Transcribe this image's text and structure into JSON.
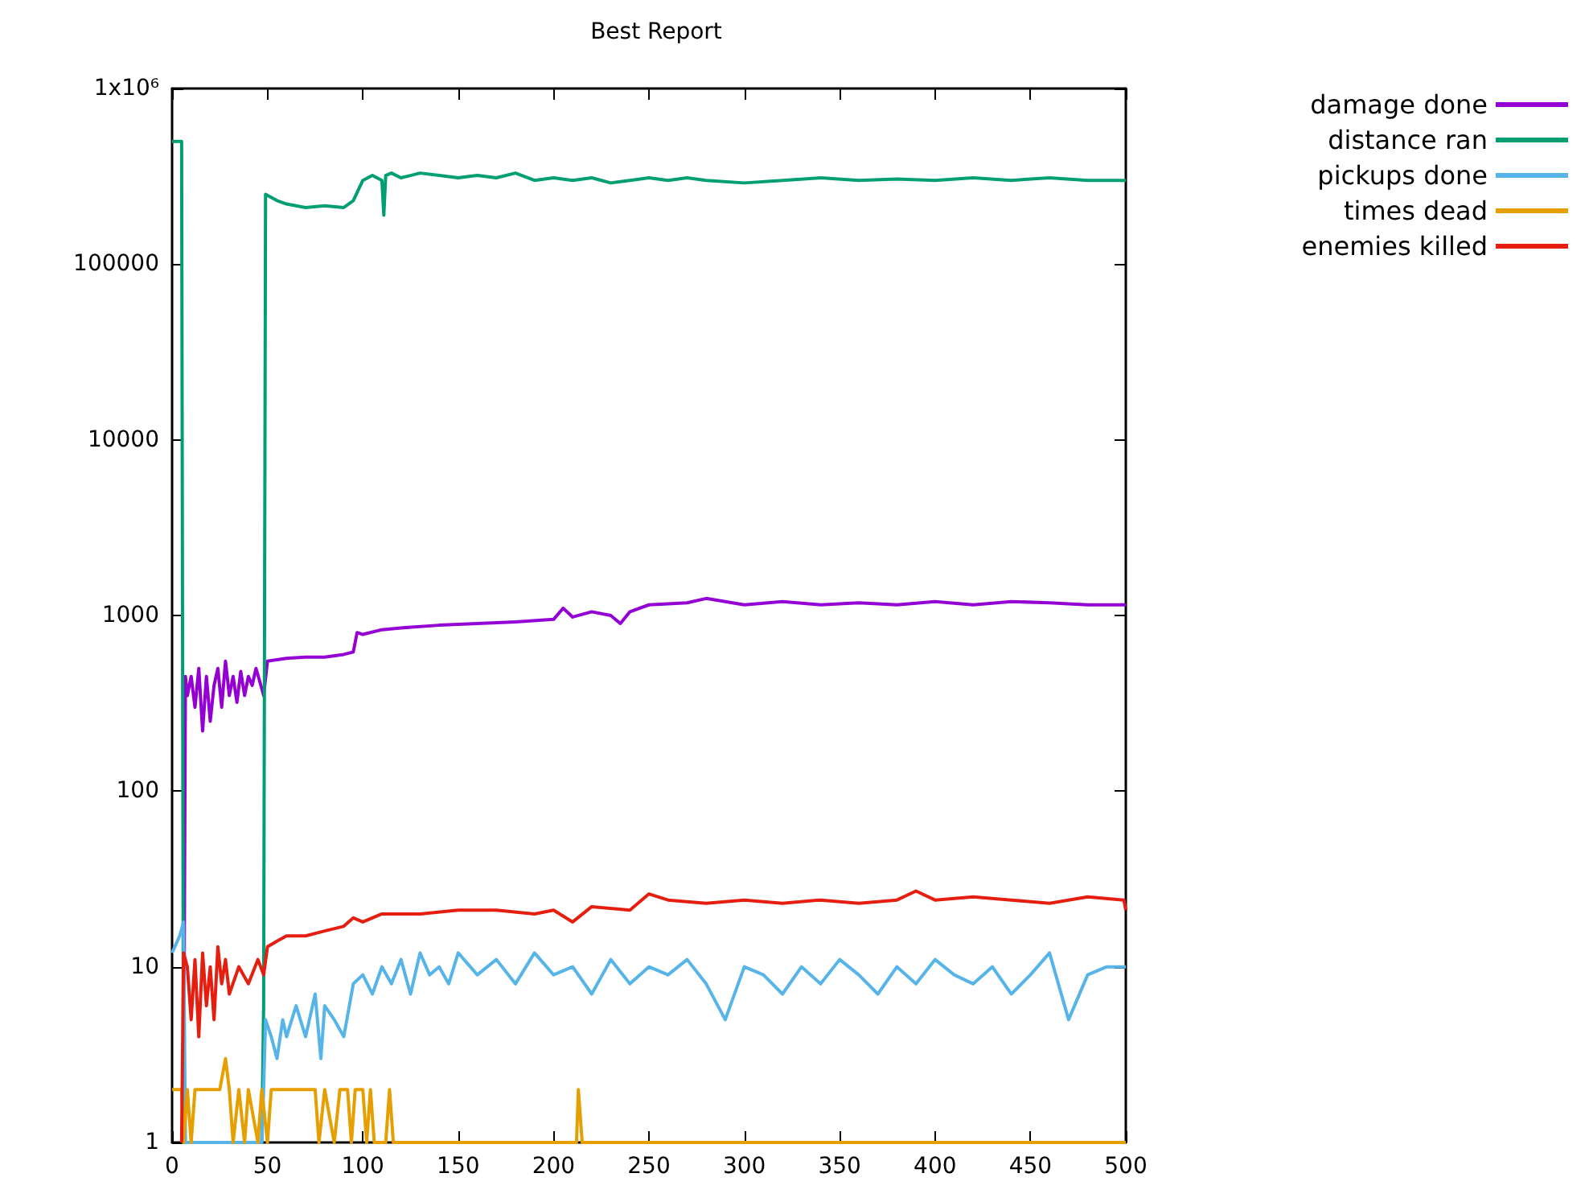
{
  "chart_data": {
    "type": "line",
    "title": "Best Report",
    "log": "y",
    "grid": false,
    "legend": "top right",
    "marker": "none",
    "line_style": "solid",
    "xlim": [
      0,
      500
    ],
    "xticks": [
      0,
      50,
      100,
      150,
      200,
      250,
      300,
      350,
      400,
      450,
      500
    ],
    "ylim": [
      1,
      1000000
    ],
    "yticks": [
      1,
      10,
      100,
      1000,
      10000,
      100000,
      {
        "value": 1000000,
        "label": "1x10⁶"
      }
    ],
    "series": [
      {
        "name": "damage done",
        "color": "#9400d3",
        "x": [
          6,
          7,
          8,
          10,
          12,
          14,
          16,
          18,
          20,
          22,
          24,
          26,
          28,
          30,
          32,
          34,
          36,
          38,
          40,
          42,
          44,
          46,
          48,
          50,
          60,
          70,
          80,
          90,
          95,
          97,
          100,
          110,
          120,
          140,
          160,
          180,
          200,
          205,
          210,
          220,
          230,
          235,
          240,
          250,
          270,
          280,
          300,
          320,
          340,
          360,
          380,
          400,
          420,
          440,
          460,
          480,
          500
        ],
        "values": [
          1,
          450,
          350,
          450,
          300,
          500,
          220,
          450,
          250,
          400,
          500,
          300,
          550,
          350,
          450,
          320,
          480,
          350,
          450,
          400,
          500,
          420,
          350,
          550,
          570,
          580,
          580,
          600,
          620,
          800,
          780,
          830,
          850,
          880,
          900,
          920,
          950,
          1100,
          980,
          1050,
          1000,
          900,
          1050,
          1150,
          1180,
          1250,
          1150,
          1200,
          1150,
          1180,
          1150,
          1200,
          1150,
          1200,
          1180,
          1150,
          1150
        ]
      },
      {
        "name": "distance ran",
        "color": "#009e73",
        "x": [
          0,
          5,
          6,
          47,
          48,
          49,
          55,
          60,
          70,
          80,
          90,
          95,
          100,
          105,
          110,
          111,
          112,
          115,
          120,
          130,
          140,
          150,
          160,
          170,
          180,
          190,
          200,
          210,
          220,
          230,
          240,
          250,
          260,
          270,
          280,
          300,
          320,
          340,
          360,
          380,
          400,
          420,
          440,
          460,
          480,
          500
        ],
        "values": [
          500000,
          500000,
          1,
          1,
          6,
          250000,
          230000,
          220000,
          210000,
          215000,
          210000,
          230000,
          300000,
          320000,
          300000,
          190000,
          320000,
          330000,
          310000,
          330000,
          320000,
          310000,
          320000,
          310000,
          330000,
          300000,
          310000,
          300000,
          310000,
          290000,
          300000,
          310000,
          300000,
          310000,
          300000,
          290000,
          300000,
          310000,
          300000,
          305000,
          300000,
          310000,
          300000,
          310000,
          300000,
          300000
        ]
      },
      {
        "name": "pickups done",
        "color": "#56b4e9",
        "x": [
          0,
          4,
          6,
          7,
          47,
          48,
          49,
          52,
          55,
          58,
          60,
          65,
          70,
          75,
          78,
          80,
          85,
          90,
          95,
          100,
          105,
          110,
          115,
          120,
          125,
          130,
          135,
          140,
          145,
          150,
          160,
          170,
          180,
          190,
          200,
          210,
          220,
          230,
          240,
          250,
          260,
          270,
          280,
          290,
          300,
          310,
          320,
          330,
          340,
          350,
          360,
          370,
          380,
          390,
          400,
          410,
          420,
          430,
          440,
          450,
          460,
          470,
          480,
          490,
          500
        ],
        "values": [
          12,
          15,
          18,
          1,
          1,
          2,
          5,
          4,
          3,
          5,
          4,
          6,
          4,
          7,
          3,
          6,
          5,
          4,
          8,
          9,
          7,
          10,
          8,
          11,
          7,
          12,
          9,
          10,
          8,
          12,
          9,
          11,
          8,
          12,
          9,
          10,
          7,
          11,
          8,
          10,
          9,
          11,
          8,
          5,
          10,
          9,
          7,
          10,
          8,
          11,
          9,
          7,
          10,
          8,
          11,
          9,
          8,
          10,
          7,
          9,
          12,
          5,
          9,
          10,
          10
        ]
      },
      {
        "name": "times dead",
        "color": "#e69f00",
        "x": [
          0,
          5,
          6,
          8,
          10,
          12,
          25,
          28,
          30,
          32,
          35,
          38,
          40,
          45,
          47,
          50,
          52,
          75,
          77,
          80,
          85,
          88,
          92,
          94,
          96,
          100,
          102,
          104,
          106,
          112,
          114,
          116,
          212,
          213,
          215,
          500
        ],
        "values": [
          2,
          2,
          1,
          2,
          1,
          2,
          2,
          3,
          2,
          1,
          2,
          1,
          2,
          1,
          2,
          1,
          2,
          2,
          1,
          2,
          1,
          2,
          2,
          1,
          2,
          2,
          1,
          2,
          1,
          1,
          2,
          1,
          1,
          2,
          1,
          1
        ]
      },
      {
        "name": "enemies killed",
        "color": "#e51e10",
        "x": [
          5,
          6,
          8,
          10,
          12,
          14,
          16,
          18,
          20,
          22,
          24,
          26,
          28,
          30,
          35,
          40,
          45,
          48,
          50,
          55,
          60,
          70,
          80,
          90,
          95,
          100,
          110,
          130,
          150,
          170,
          190,
          200,
          210,
          220,
          240,
          250,
          260,
          280,
          300,
          320,
          340,
          360,
          380,
          390,
          400,
          420,
          440,
          460,
          480,
          499,
          500
        ],
        "values": [
          1,
          12,
          10,
          5,
          11,
          4,
          12,
          6,
          10,
          5,
          13,
          8,
          11,
          7,
          10,
          8,
          11,
          9,
          13,
          14,
          15,
          15,
          16,
          17,
          19,
          18,
          20,
          20,
          21,
          21,
          20,
          21,
          18,
          22,
          21,
          26,
          24,
          23,
          24,
          23,
          24,
          23,
          24,
          27,
          24,
          25,
          24,
          23,
          25,
          24,
          21
        ]
      }
    ]
  }
}
